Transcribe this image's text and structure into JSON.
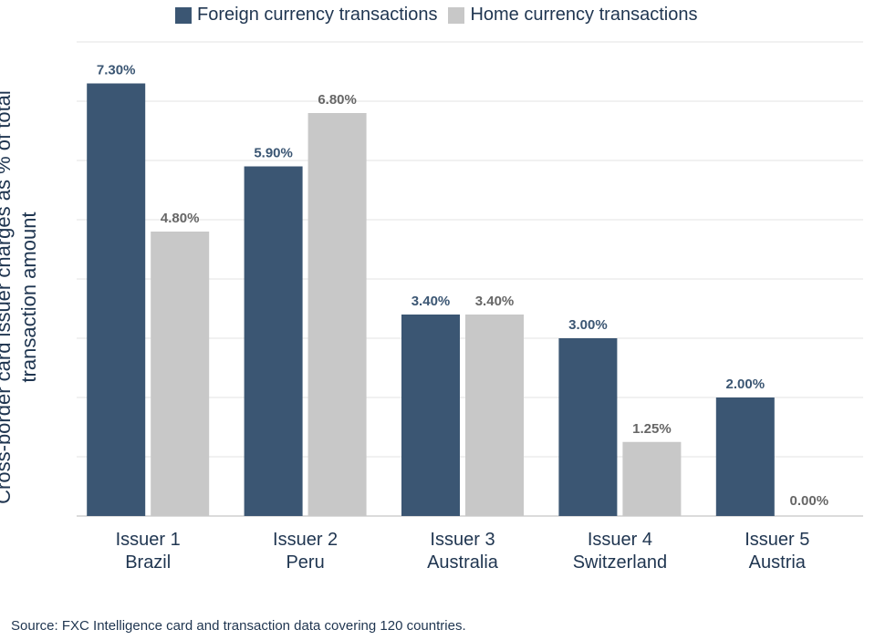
{
  "chart_data": {
    "type": "bar",
    "categories": [
      [
        "Issuer 1",
        "Brazil"
      ],
      [
        "Issuer 2",
        "Peru"
      ],
      [
        "Issuer 3",
        "Australia"
      ],
      [
        "Issuer 4",
        "Switzerland"
      ],
      [
        "Issuer 5",
        "Austria"
      ]
    ],
    "series": [
      {
        "name": "Foreign currency transactions",
        "values": [
          7.3,
          5.9,
          3.4,
          3.0,
          2.0
        ],
        "labels": [
          "7.30%",
          "5.90%",
          "3.40%",
          "3.00%",
          "2.00%"
        ],
        "color": "#3b5673",
        "label_color": "#3b5673"
      },
      {
        "name": "Home currency transactions",
        "values": [
          4.8,
          6.8,
          3.4,
          1.25,
          0.0
        ],
        "labels": [
          "4.80%",
          "6.80%",
          "3.40%",
          "1.25%",
          "0.00%"
        ],
        "color": "#c8c8c8",
        "label_color": "#666666"
      }
    ],
    "ylabel": "Cross-border card issuer charges as % of total transaction amount",
    "ylabel_lines": [
      "Cross-border card issuer charges as % of total",
      "transaction amount"
    ],
    "ylim": [
      0,
      8
    ],
    "grid": true,
    "legend": "top-center"
  },
  "source": "Source: FXC Intelligence card and transaction data covering 120 countries."
}
